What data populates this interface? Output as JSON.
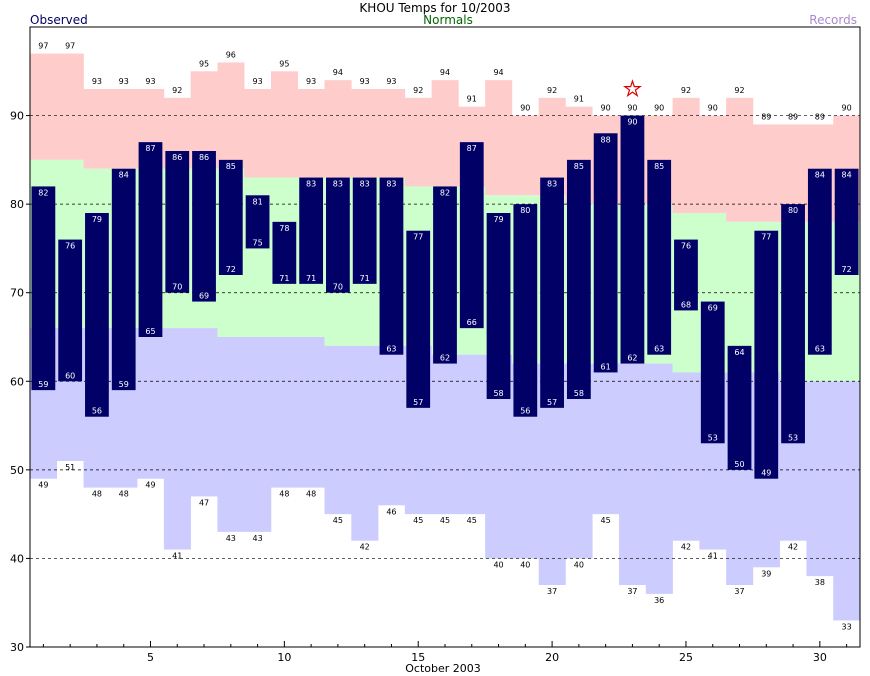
{
  "chart_data": {
    "type": "bar",
    "title": "KHOU Temps for 10/2003",
    "xlabel": "October 2003",
    "ylabel": "",
    "ylim": [
      30,
      100
    ],
    "xlim": [
      0.5,
      31.5
    ],
    "grid": "dashed horizontal at 40, 50, 60, 70, 80, 90",
    "legend": [
      "Observed",
      "Normals",
      "Records"
    ],
    "x_ticks": [
      5,
      10,
      15,
      20,
      25,
      30
    ],
    "y_ticks": [
      30,
      40,
      50,
      60,
      70,
      80,
      90
    ],
    "days": [
      1,
      2,
      3,
      4,
      5,
      6,
      7,
      8,
      9,
      10,
      11,
      12,
      13,
      14,
      15,
      16,
      17,
      18,
      19,
      20,
      21,
      22,
      23,
      24,
      25,
      26,
      27,
      28,
      29,
      30,
      31
    ],
    "observed_high": [
      82,
      76,
      79,
      84,
      87,
      86,
      86,
      85,
      81,
      78,
      83,
      83,
      83,
      83,
      77,
      82,
      87,
      79,
      80,
      83,
      85,
      88,
      90,
      85,
      76,
      69,
      64,
      77,
      80,
      84,
      84
    ],
    "observed_low": [
      59,
      60,
      56,
      59,
      65,
      70,
      69,
      72,
      75,
      71,
      71,
      70,
      71,
      63,
      57,
      62,
      66,
      58,
      56,
      57,
      58,
      61,
      62,
      63,
      68,
      53,
      50,
      49,
      53,
      63,
      72
    ],
    "normal_high": [
      85,
      85,
      84,
      84,
      84,
      84,
      84,
      84,
      83,
      83,
      83,
      83,
      83,
      83,
      82,
      82,
      82,
      81,
      81,
      81,
      80,
      80,
      80,
      80,
      79,
      79,
      78,
      78,
      78,
      78,
      78
    ],
    "normal_low": [
      66,
      66,
      66,
      66,
      66,
      66,
      66,
      65,
      65,
      65,
      65,
      64,
      64,
      64,
      64,
      63,
      63,
      63,
      62,
      62,
      62,
      62,
      62,
      62,
      61,
      61,
      61,
      61,
      60,
      60,
      60
    ],
    "record_high": [
      97,
      97,
      93,
      93,
      93,
      92,
      95,
      96,
      93,
      95,
      93,
      94,
      93,
      93,
      92,
      94,
      91,
      94,
      90,
      92,
      91,
      90,
      90,
      90,
      92,
      90,
      92,
      89,
      89,
      89,
      90
    ],
    "record_low": [
      49,
      51,
      48,
      48,
      49,
      41,
      47,
      43,
      43,
      48,
      48,
      45,
      42,
      46,
      45,
      45,
      45,
      40,
      40,
      37,
      40,
      45,
      37,
      36,
      42,
      41,
      37,
      39,
      42,
      38,
      33
    ],
    "record_marker": {
      "day": 23,
      "symbol": "★"
    },
    "colors": {
      "observed": "#000066",
      "normals_band": "#ccffcc",
      "record_high_band": "#ffcccc",
      "record_low_band": "#ccccff",
      "label_observed": "#000066",
      "label_normals": "#006600",
      "label_records": "#aa88cc",
      "star": "#dd0000"
    }
  }
}
